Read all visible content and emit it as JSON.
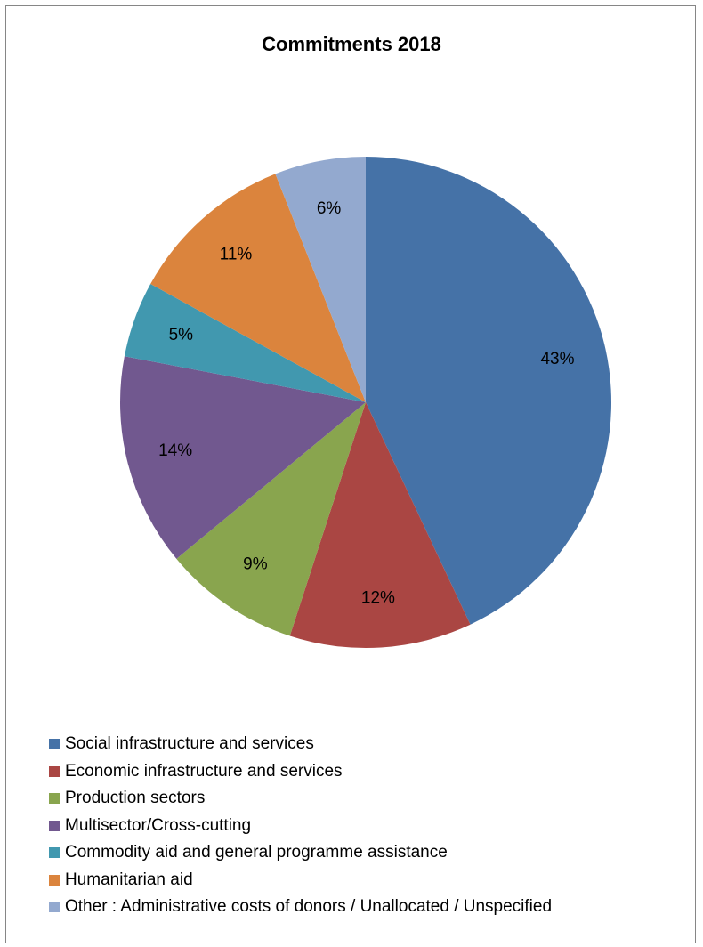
{
  "chart_data": {
    "type": "pie",
    "title": "Commitments 2018",
    "slices": [
      {
        "label": "Social infrastructure and services",
        "value": 43,
        "display": "43%",
        "color": "#4572a7"
      },
      {
        "label": "Economic infrastructure and services",
        "value": 12,
        "display": "12%",
        "color": "#aa4643"
      },
      {
        "label": "Production sectors",
        "value": 9,
        "display": "9%",
        "color": "#89a54e"
      },
      {
        "label": "Multisector/Cross-cutting",
        "value": 14,
        "display": "14%",
        "color": "#71588f"
      },
      {
        "label": "Commodity aid and general programme assistance",
        "value": 5,
        "display": "5%",
        "color": "#4198af"
      },
      {
        "label": "Humanitarian aid",
        "value": 11,
        "display": "11%",
        "color": "#db843d"
      },
      {
        "label": "Other : Administrative costs of donors / Unallocated / Unspecified",
        "value": 6,
        "display": "6%",
        "color": "#93a9cf"
      }
    ],
    "start_angle": "12 o'clock",
    "direction": "clockwise",
    "legend": "bottom-left"
  }
}
